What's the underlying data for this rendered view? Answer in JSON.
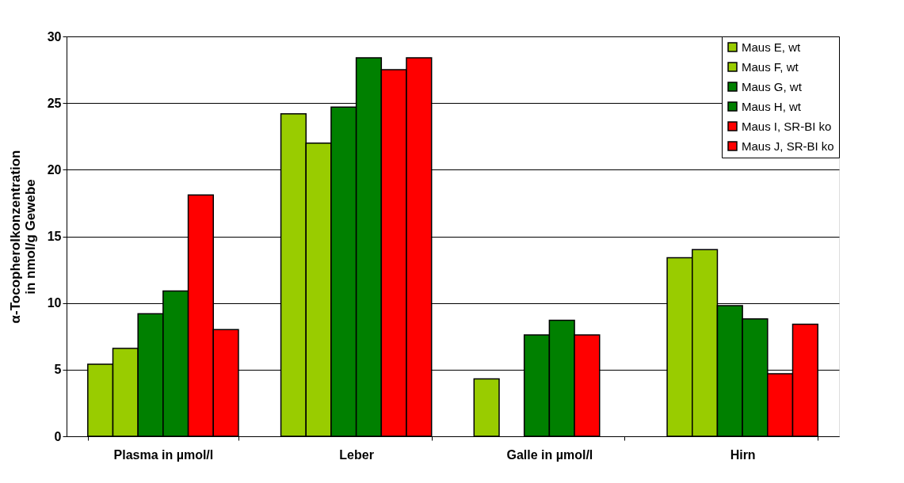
{
  "chart_data": {
    "type": "bar",
    "ylabel": "α-Tocopherolkonzentration\nin nmol/g Gewebe",
    "categories": [
      "Plasma in µmol/l",
      "Leber",
      "Galle in µmol/l",
      "Hirn"
    ],
    "series": [
      {
        "name": "Maus E, wt",
        "color": "#99cc00",
        "values": [
          5.4,
          24.2,
          4.3,
          13.4
        ]
      },
      {
        "name": "Maus F, wt",
        "color": "#99cc00",
        "values": [
          6.6,
          22.0,
          null,
          14.0
        ]
      },
      {
        "name": "Maus G, wt",
        "color": "#008000",
        "values": [
          9.2,
          24.7,
          7.6,
          9.8
        ]
      },
      {
        "name": "Maus H, wt",
        "color": "#008000",
        "values": [
          10.9,
          28.4,
          8.7,
          8.8
        ]
      },
      {
        "name": "Maus I, SR-BI ko",
        "color": "#ff0000",
        "values": [
          18.1,
          27.5,
          7.6,
          4.7
        ]
      },
      {
        "name": "Maus J, SR-BI ko",
        "color": "#ff0000",
        "values": [
          8.0,
          28.4,
          null,
          8.4
        ]
      }
    ],
    "ylim": [
      0,
      30
    ],
    "yticks": [
      0,
      5,
      10,
      15,
      20,
      25,
      30
    ],
    "grid": "y",
    "legend": "top right"
  }
}
